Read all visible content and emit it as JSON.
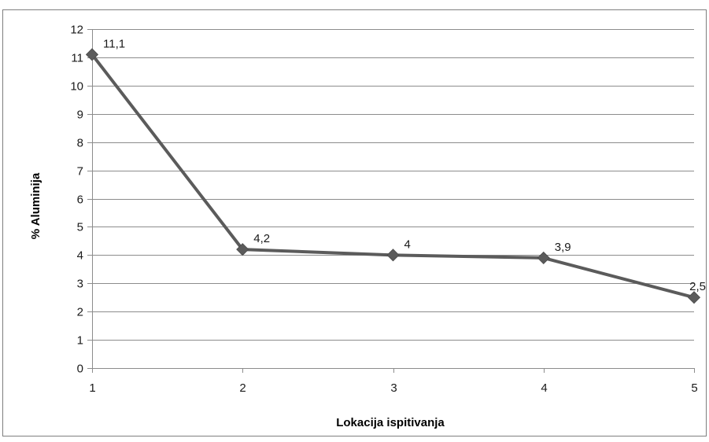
{
  "chart_data": {
    "type": "line",
    "title": "",
    "xlabel": "Lokacija ispitivanja",
    "ylabel": "% Aluminija",
    "x": [
      1,
      2,
      3,
      4,
      5
    ],
    "x_tick_labels": [
      "1",
      "2",
      "3",
      "4",
      "5"
    ],
    "y_tick_labels": [
      "0",
      "1",
      "2",
      "3",
      "4",
      "5",
      "6",
      "7",
      "8",
      "9",
      "10",
      "11",
      "12"
    ],
    "ylim": [
      0,
      12
    ],
    "grid": true,
    "legend": "none",
    "series": [
      {
        "values": [
          11.1,
          4.2,
          4,
          3.9,
          2.5
        ],
        "data_labels": [
          "11,1",
          "4,2",
          "4",
          "3,9",
          "2,5"
        ],
        "color": "#5b5b5b",
        "marker": "diamond"
      }
    ],
    "colors": {
      "line": "#5b5b5b",
      "grid": "#8c8c8c",
      "axis": "#8c8c8c",
      "frame": "#7f7f7f"
    }
  }
}
